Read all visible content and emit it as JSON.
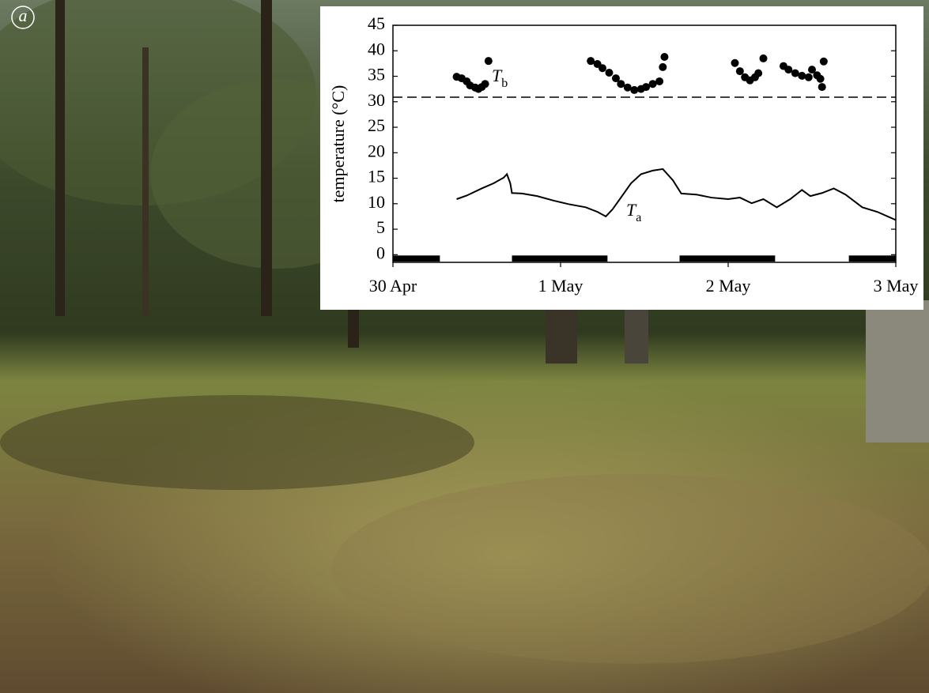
{
  "panel_label": "a",
  "chart_data": {
    "type": "scatter-line",
    "y_label": "temperature (°C)",
    "xlim": [
      0,
      3
    ],
    "xticks": [
      {
        "value": 0,
        "label": "30 Apr"
      },
      {
        "value": 1,
        "label": "1 May"
      },
      {
        "value": 2,
        "label": "2 May"
      },
      {
        "value": 3,
        "label": "3 May"
      }
    ],
    "ylim": [
      -1.5,
      45
    ],
    "yticks": [
      0,
      5,
      10,
      15,
      20,
      25,
      30,
      35,
      40,
      45
    ],
    "reference_line": 30.9,
    "dark_periods": [
      [
        0,
        0.28
      ],
      [
        0.71,
        1.28
      ],
      [
        1.71,
        2.28
      ],
      [
        2.72,
        3
      ]
    ],
    "series": [
      {
        "name": "T",
        "subscript": "b",
        "type": "scatter",
        "color": "#000000",
        "x": [
          0.38,
          0.41,
          0.44,
          0.46,
          0.49,
          0.51,
          0.53,
          0.55,
          0.57,
          1.18,
          1.22,
          1.25,
          1.29,
          1.33,
          1.36,
          1.4,
          1.44,
          1.48,
          1.51,
          1.55,
          1.59,
          1.61,
          1.62,
          2.04,
          2.07,
          2.1,
          2.13,
          2.16,
          2.18,
          2.21,
          2.33,
          2.36,
          2.4,
          2.44,
          2.48,
          2.5,
          2.53,
          2.55,
          2.56,
          2.57
        ],
        "values": [
          34.9,
          34.6,
          34.0,
          33.2,
          32.8,
          32.5,
          32.9,
          33.5,
          38.0,
          38.0,
          37.4,
          36.6,
          35.7,
          34.6,
          33.5,
          32.8,
          32.3,
          32.5,
          32.9,
          33.5,
          34.0,
          36.8,
          38.8,
          37.6,
          36.0,
          34.8,
          34.2,
          34.8,
          35.6,
          38.5,
          37.0,
          36.3,
          35.6,
          35.1,
          34.8,
          36.3,
          35.2,
          34.5,
          32.9,
          37.9
        ]
      },
      {
        "name": "T",
        "subscript": "a",
        "type": "line",
        "color": "#000000",
        "x": [
          0.38,
          0.44,
          0.53,
          0.6,
          0.66,
          0.68,
          0.7,
          0.71,
          0.77,
          0.86,
          0.96,
          1.05,
          1.15,
          1.22,
          1.27,
          1.31,
          1.36,
          1.42,
          1.48,
          1.55,
          1.61,
          1.67,
          1.72,
          1.81,
          1.9,
          2.0,
          2.07,
          2.14,
          2.21,
          2.29,
          2.37,
          2.44,
          2.49,
          2.56,
          2.63,
          2.7,
          2.8,
          2.89,
          3.0
        ],
        "values": [
          10.9,
          11.6,
          13.0,
          14.0,
          15.1,
          15.8,
          14.0,
          12.1,
          12.0,
          11.5,
          10.6,
          9.9,
          9.3,
          8.4,
          7.5,
          8.9,
          11.2,
          14.0,
          15.8,
          16.5,
          16.8,
          14.6,
          12.0,
          11.8,
          11.2,
          10.9,
          11.2,
          10.1,
          10.9,
          9.3,
          10.9,
          12.7,
          11.5,
          12.1,
          13.0,
          11.8,
          9.3,
          8.4,
          6.8
        ]
      }
    ]
  }
}
